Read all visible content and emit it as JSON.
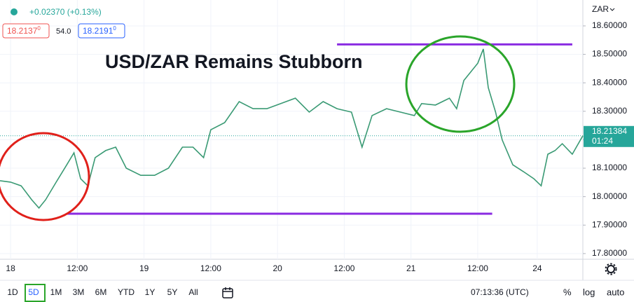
{
  "chart_data": {
    "type": "line",
    "title": "USD/ZAR Remains Stubborn",
    "change": "+0.02370 (+0.13%)",
    "bid": {
      "price": "18.2137",
      "fraction": "0"
    },
    "spread": "54.0",
    "ask": {
      "price": "18.2191",
      "fraction": "0"
    },
    "currency": "ZAR",
    "x": [
      -1.9,
      0,
      1.9,
      3.8,
      5.1,
      6.3,
      8.2,
      10.1,
      11.4,
      12.6,
      13.9,
      15.2,
      17.1,
      18.9,
      20.8,
      23.4,
      25.9,
      28.4,
      30.9,
      32.8,
      34.7,
      36.0,
      38.5,
      41.1,
      43.6,
      46.1,
      48.6,
      51.2,
      53.7,
      56.2,
      58.7,
      61.3,
      63.2,
      65.0,
      67.6,
      70.1,
      72.6,
      73.9,
      76.4,
      78.9,
      80.2,
      81.5,
      84.0,
      85.0,
      85.9,
      87.2,
      88.4,
      90.3,
      92.2,
      94.1,
      95.4,
      96.6,
      97.9,
      99.2,
      101.0,
      102.9
    ],
    "values": [
      18.056,
      18.051,
      18.038,
      17.989,
      17.96,
      17.989,
      18.051,
      18.112,
      18.154,
      18.063,
      18.038,
      18.137,
      18.162,
      18.174,
      18.1,
      18.075,
      18.075,
      18.1,
      18.174,
      18.174,
      18.137,
      18.235,
      18.26,
      18.334,
      18.309,
      18.309,
      18.327,
      18.346,
      18.297,
      18.334,
      18.309,
      18.297,
      18.174,
      18.285,
      18.309,
      18.297,
      18.285,
      18.327,
      18.322,
      18.346,
      18.309,
      18.408,
      18.469,
      18.519,
      18.383,
      18.297,
      18.199,
      18.112,
      18.088,
      18.063,
      18.038,
      18.149,
      18.162,
      18.186,
      18.149,
      18.214
    ],
    "color": "#3a9a74",
    "xlim": [
      -1.9,
      102.9
    ],
    "xticks": [
      {
        "value": 0,
        "label": "18"
      },
      {
        "value": 12,
        "label": "12:00"
      },
      {
        "value": 24,
        "label": "19"
      },
      {
        "value": 36,
        "label": "12:00"
      },
      {
        "value": 48,
        "label": "20"
      },
      {
        "value": 60,
        "label": "12:00"
      },
      {
        "value": 72,
        "label": "21"
      },
      {
        "value": 84,
        "label": "12:00"
      },
      {
        "value": 94.7,
        "label": "24"
      }
    ],
    "ylim": [
      17.78,
      18.691
    ],
    "yticks": [
      {
        "value": 17.8,
        "label": "17.80000"
      },
      {
        "value": 17.9,
        "label": "17.90000"
      },
      {
        "value": 18.0,
        "label": "18.00000"
      },
      {
        "value": 18.1,
        "label": "18.10000"
      },
      {
        "value": 18.2,
        "label": "18.20000"
      },
      {
        "value": 18.3,
        "label": "18.30000"
      },
      {
        "value": 18.4,
        "label": "18.40000"
      },
      {
        "value": 18.5,
        "label": "18.50000"
      },
      {
        "value": 18.6,
        "label": "18.60000"
      }
    ],
    "last_price": 18.21384,
    "countdown": "01:24",
    "levels": [
      {
        "value": 17.94,
        "from": 10.1,
        "to": 86.6,
        "color": "#8a2be2"
      },
      {
        "value": 18.535,
        "from": 58.7,
        "to": 101.0,
        "color": "#8a2be2"
      }
    ],
    "toolbar": {
      "ranges": [
        "1D",
        "5D",
        "1M",
        "3M",
        "6M",
        "YTD",
        "1Y",
        "5Y",
        "All"
      ],
      "clock": "07:13:36 (UTC)",
      "percent": "%",
      "log": "log",
      "auto": "auto"
    }
  }
}
